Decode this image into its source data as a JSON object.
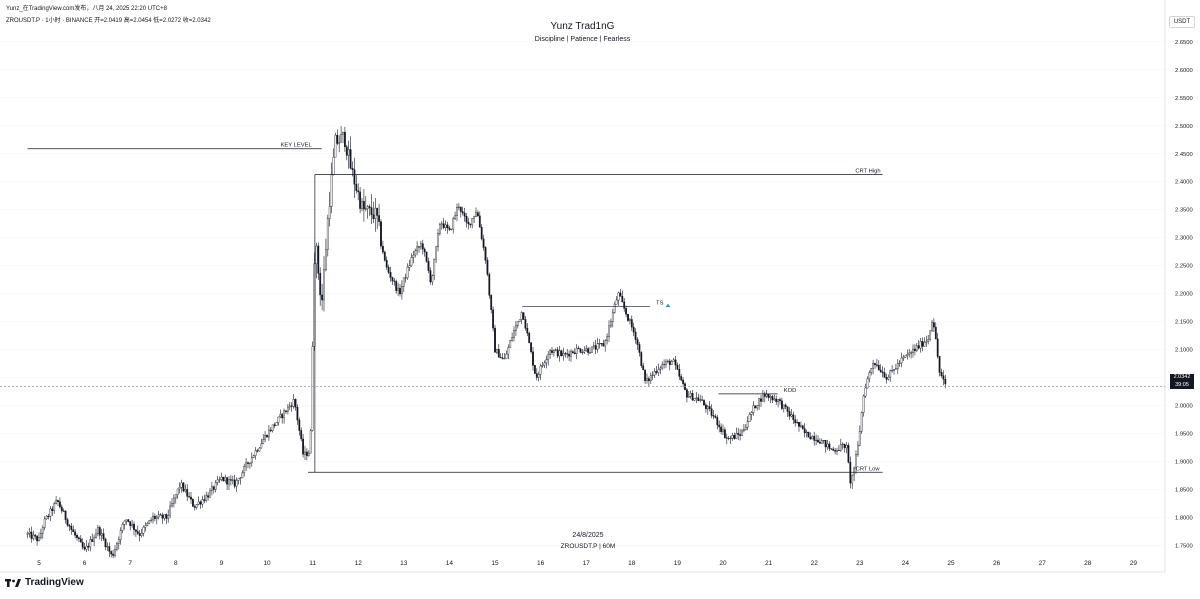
{
  "header": {
    "line1": "Yunz_在TradingView.com发布，八月 24, 2025 22:20 UTC+8",
    "line2": "ZROUSDT.P · 1小时 · BINANCE  开=2.0419  高=2.0454  低=2.0272  收=2.0342"
  },
  "title": "Yunz Trad1nG",
  "subtitle": "Discipline | Patience | Fearless",
  "currency_label": "USDT",
  "current_price": {
    "value": "2.0342",
    "countdown": "39:05"
  },
  "date_label": "24/8/2025",
  "symbol_label": "ZROUSDT.P | 60M",
  "brand": "TradingView",
  "colors": {
    "candle": "#131722",
    "line": "#131722",
    "dashed": "#9598a1",
    "ts_arrow": "#26a69a"
  },
  "chart_data": {
    "type": "candlestick",
    "ylim": [
      1.71,
      2.68
    ],
    "y_ticks": [
      "2.6500",
      "2.6000",
      "2.5500",
      "2.5000",
      "2.4500",
      "2.4000",
      "2.3500",
      "2.3000",
      "2.2500",
      "2.2000",
      "2.1500",
      "2.1000",
      "2.0500",
      "2.0000",
      "1.9500",
      "1.9000",
      "1.8500",
      "1.8000",
      "1.7500"
    ],
    "x_ticks": [
      {
        "label": "5",
        "day": 5
      },
      {
        "label": "6",
        "day": 6
      },
      {
        "label": "7",
        "day": 7
      },
      {
        "label": "8",
        "day": 8
      },
      {
        "label": "9",
        "day": 9
      },
      {
        "label": "10",
        "day": 10
      },
      {
        "label": "11",
        "day": 11
      },
      {
        "label": "12",
        "day": 12
      },
      {
        "label": "13",
        "day": 13
      },
      {
        "label": "14",
        "day": 14
      },
      {
        "label": "15",
        "day": 15
      },
      {
        "label": "16",
        "day": 16
      },
      {
        "label": "17",
        "day": 17
      },
      {
        "label": "18",
        "day": 18
      },
      {
        "label": "19",
        "day": 19
      },
      {
        "label": "20",
        "day": 20
      },
      {
        "label": "21",
        "day": 21
      },
      {
        "label": "22",
        "day": 22
      },
      {
        "label": "23",
        "day": 23
      },
      {
        "label": "24",
        "day": 24
      },
      {
        "label": "25",
        "day": 25
      },
      {
        "label": "26",
        "day": 26
      },
      {
        "label": "27",
        "day": 27
      },
      {
        "label": "28",
        "day": 28
      },
      {
        "label": "29",
        "day": 29
      }
    ],
    "path": [
      [
        4.75,
        1.77
      ],
      [
        5.0,
        1.76
      ],
      [
        5.1,
        1.79
      ],
      [
        5.4,
        1.83
      ],
      [
        5.7,
        1.78
      ],
      [
        6.0,
        1.74
      ],
      [
        6.3,
        1.78
      ],
      [
        6.6,
        1.73
      ],
      [
        6.9,
        1.8
      ],
      [
        7.2,
        1.77
      ],
      [
        7.5,
        1.8
      ],
      [
        7.8,
        1.8
      ],
      [
        8.1,
        1.86
      ],
      [
        8.4,
        1.82
      ],
      [
        8.7,
        1.84
      ],
      [
        9.0,
        1.87
      ],
      [
        9.3,
        1.86
      ],
      [
        9.6,
        1.9
      ],
      [
        10.0,
        1.95
      ],
      [
        10.3,
        1.98
      ],
      [
        10.6,
        2.01
      ],
      [
        10.8,
        1.91
      ],
      [
        10.95,
        1.92
      ],
      [
        11.05,
        2.3
      ],
      [
        11.2,
        2.18
      ],
      [
        11.35,
        2.35
      ],
      [
        11.5,
        2.47
      ],
      [
        11.7,
        2.48
      ],
      [
        11.85,
        2.42
      ],
      [
        12.1,
        2.35
      ],
      [
        12.4,
        2.34
      ],
      [
        12.6,
        2.25
      ],
      [
        12.9,
        2.2
      ],
      [
        13.2,
        2.27
      ],
      [
        13.4,
        2.29
      ],
      [
        13.6,
        2.22
      ],
      [
        13.8,
        2.33
      ],
      [
        14.0,
        2.31
      ],
      [
        14.2,
        2.36
      ],
      [
        14.4,
        2.32
      ],
      [
        14.6,
        2.35
      ],
      [
        14.8,
        2.26
      ],
      [
        15.0,
        2.1
      ],
      [
        15.2,
        2.08
      ],
      [
        15.4,
        2.13
      ],
      [
        15.6,
        2.17
      ],
      [
        15.9,
        2.05
      ],
      [
        16.2,
        2.1
      ],
      [
        16.5,
        2.09
      ],
      [
        16.8,
        2.1
      ],
      [
        17.1,
        2.1
      ],
      [
        17.4,
        2.11
      ],
      [
        17.7,
        2.2
      ],
      [
        17.9,
        2.16
      ],
      [
        18.1,
        2.12
      ],
      [
        18.3,
        2.04
      ],
      [
        18.6,
        2.07
      ],
      [
        18.9,
        2.08
      ],
      [
        19.2,
        2.02
      ],
      [
        19.5,
        2.01
      ],
      [
        19.8,
        1.98
      ],
      [
        20.1,
        1.94
      ],
      [
        20.4,
        1.95
      ],
      [
        20.7,
        2.0
      ],
      [
        20.9,
        2.02
      ],
      [
        21.2,
        2.01
      ],
      [
        21.5,
        1.98
      ],
      [
        21.8,
        1.95
      ],
      [
        22.1,
        1.94
      ],
      [
        22.4,
        1.92
      ],
      [
        22.7,
        1.93
      ],
      [
        22.8,
        1.86
      ],
      [
        22.95,
        1.92
      ],
      [
        23.1,
        2.03
      ],
      [
        23.3,
        2.08
      ],
      [
        23.6,
        2.05
      ],
      [
        23.9,
        2.08
      ],
      [
        24.2,
        2.1
      ],
      [
        24.5,
        2.12
      ],
      [
        24.6,
        2.16
      ],
      [
        24.75,
        2.06
      ],
      [
        24.9,
        2.03
      ]
    ],
    "current_price": 2.0342,
    "levels": [
      {
        "label": "KEY LEVEL",
        "price": 2.459,
        "x_start": 4.75,
        "x_end": 11.2
      },
      {
        "label": "CRT High",
        "price": 2.413,
        "x_start": 11.05,
        "x_end": 23.5
      },
      {
        "label": "CRT Low",
        "price": 1.881,
        "x_start": 10.9,
        "x_end": 23.5
      },
      {
        "label": "TS",
        "price": 2.177,
        "x_start": 15.6,
        "x_end": 18.4
      },
      {
        "label": "KOD",
        "price": 2.021,
        "x_start": 19.9,
        "x_end": 21.2
      }
    ]
  }
}
